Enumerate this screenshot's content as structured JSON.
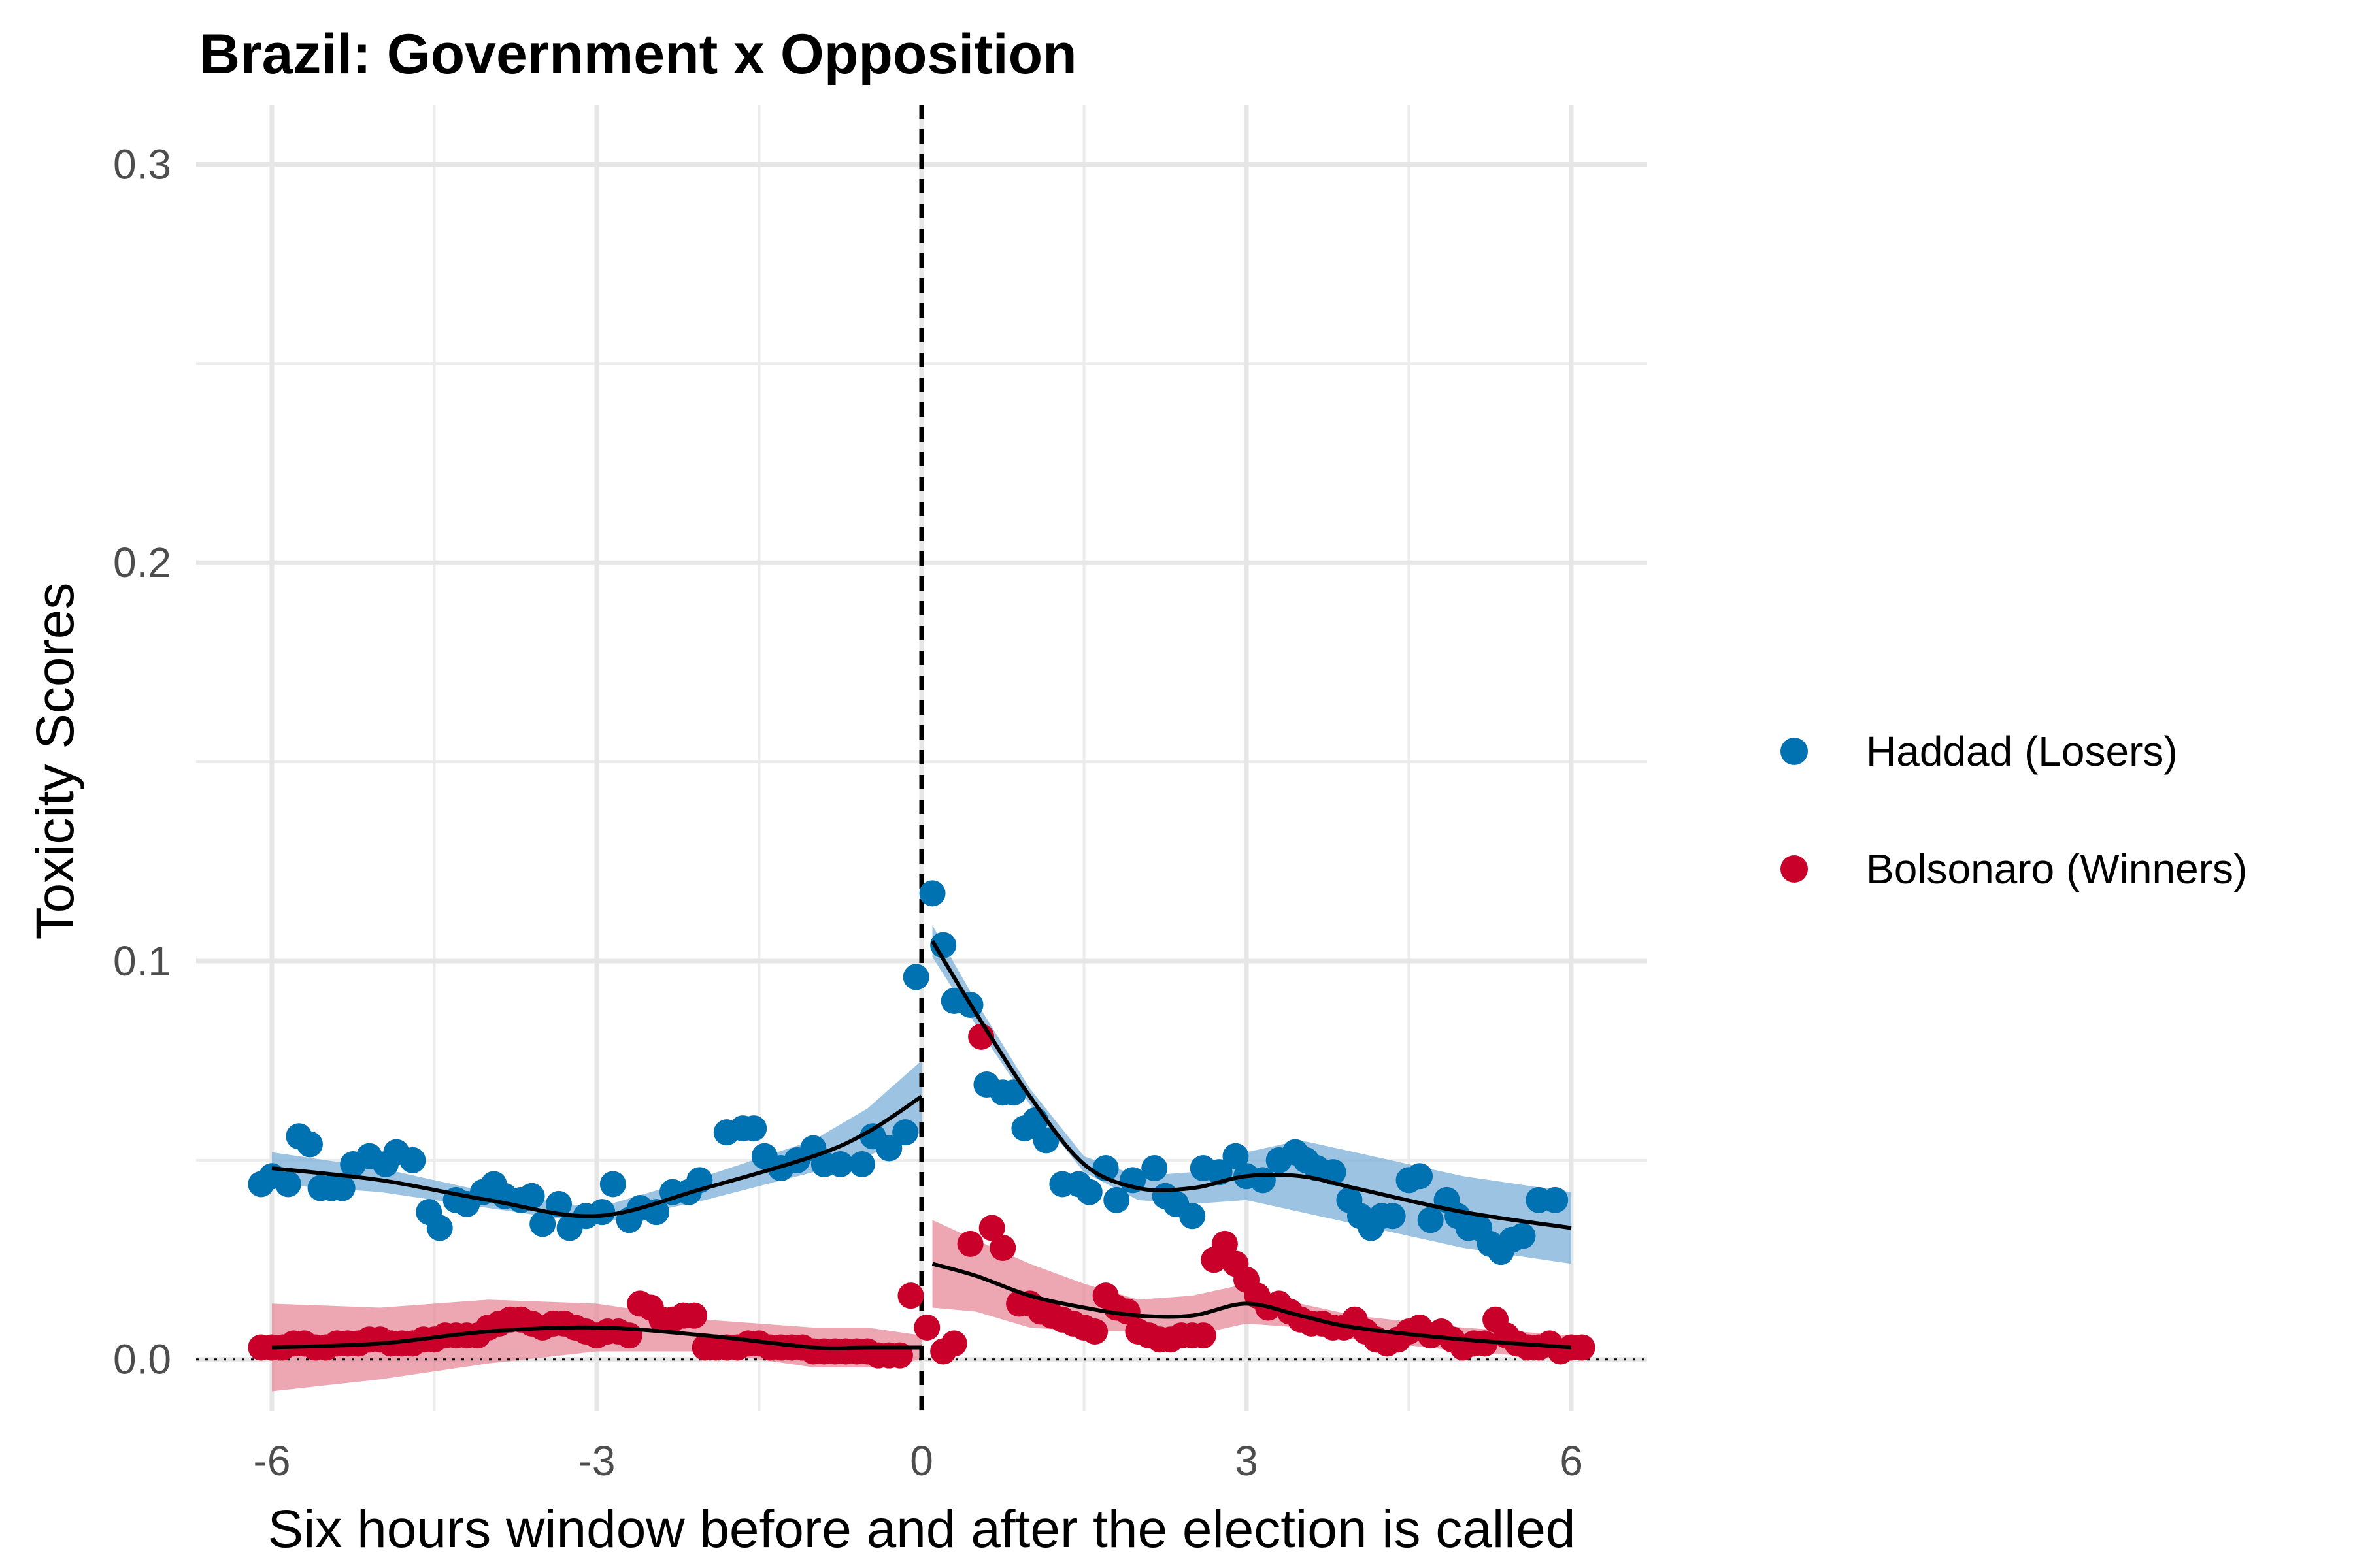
{
  "chart_data": {
    "type": "scatter",
    "title": "Brazil: Government x Opposition",
    "xlabel": "Six hours window before and after the election is called",
    "ylabel": "Toxicity Scores",
    "xlim": [
      -6.7,
      6.7
    ],
    "ylim": [
      -0.013,
      0.315
    ],
    "xticks": [
      -6,
      -3,
      0,
      3,
      6
    ],
    "xtick_labels": [
      "-6",
      "-3",
      "0",
      "3",
      "6"
    ],
    "yticks": [
      0.0,
      0.1,
      0.2,
      0.3
    ],
    "ytick_labels": [
      "0.0",
      "0.1",
      "0.2",
      "0.3"
    ],
    "grid": true,
    "legend_position": "right",
    "reference_lines": [
      {
        "axis": "x",
        "value": 0,
        "style": "dashed"
      },
      {
        "axis": "y",
        "value": 0,
        "style": "dotted"
      }
    ],
    "series": [
      {
        "name": "Haddad (Losers)",
        "color": "#0072b2",
        "band_color": "#7bafd8",
        "points": [
          [
            -6.1,
            0.044
          ],
          [
            -6.0,
            0.046
          ],
          [
            -5.85,
            0.044
          ],
          [
            -5.75,
            0.056
          ],
          [
            -5.65,
            0.054
          ],
          [
            -5.55,
            0.043
          ],
          [
            -5.45,
            0.043
          ],
          [
            -5.35,
            0.043
          ],
          [
            -5.25,
            0.049
          ],
          [
            -5.1,
            0.051
          ],
          [
            -4.95,
            0.049
          ],
          [
            -4.85,
            0.052
          ],
          [
            -4.7,
            0.05
          ],
          [
            -4.55,
            0.037
          ],
          [
            -4.45,
            0.033
          ],
          [
            -4.3,
            0.04
          ],
          [
            -4.2,
            0.039
          ],
          [
            -4.05,
            0.042
          ],
          [
            -3.95,
            0.044
          ],
          [
            -3.85,
            0.041
          ],
          [
            -3.7,
            0.04
          ],
          [
            -3.6,
            0.041
          ],
          [
            -3.5,
            0.034
          ],
          [
            -3.35,
            0.039
          ],
          [
            -3.25,
            0.033
          ],
          [
            -3.1,
            0.036
          ],
          [
            -2.95,
            0.037
          ],
          [
            -2.85,
            0.044
          ],
          [
            -2.7,
            0.035
          ],
          [
            -2.6,
            0.038
          ],
          [
            -2.45,
            0.037
          ],
          [
            -2.3,
            0.042
          ],
          [
            -2.15,
            0.042
          ],
          [
            -2.05,
            0.045
          ],
          [
            -1.8,
            0.057
          ],
          [
            -1.65,
            0.058
          ],
          [
            -1.55,
            0.058
          ],
          [
            -1.45,
            0.051
          ],
          [
            -1.3,
            0.048
          ],
          [
            -1.15,
            0.05
          ],
          [
            -1.0,
            0.053
          ],
          [
            -0.9,
            0.049
          ],
          [
            -0.75,
            0.049
          ],
          [
            -0.55,
            0.049
          ],
          [
            -0.45,
            0.056
          ],
          [
            -0.3,
            0.053
          ],
          [
            -0.15,
            0.057
          ],
          [
            -0.05,
            0.096
          ],
          [
            0.1,
            0.117
          ],
          [
            0.2,
            0.104
          ],
          [
            0.3,
            0.09
          ],
          [
            0.45,
            0.089
          ],
          [
            0.6,
            0.069
          ],
          [
            0.75,
            0.067
          ],
          [
            0.85,
            0.067
          ],
          [
            0.95,
            0.058
          ],
          [
            1.05,
            0.06
          ],
          [
            1.15,
            0.055
          ],
          [
            1.3,
            0.044
          ],
          [
            1.45,
            0.044
          ],
          [
            1.55,
            0.042
          ],
          [
            1.7,
            0.048
          ],
          [
            1.8,
            0.04
          ],
          [
            1.95,
            0.045
          ],
          [
            2.15,
            0.048
          ],
          [
            2.25,
            0.041
          ],
          [
            2.35,
            0.039
          ],
          [
            2.5,
            0.036
          ],
          [
            2.6,
            0.048
          ],
          [
            2.75,
            0.047
          ],
          [
            2.9,
            0.051
          ],
          [
            3.0,
            0.046
          ],
          [
            3.15,
            0.045
          ],
          [
            3.3,
            0.05
          ],
          [
            3.45,
            0.052
          ],
          [
            3.55,
            0.05
          ],
          [
            3.65,
            0.048
          ],
          [
            3.8,
            0.047
          ],
          [
            3.95,
            0.04
          ],
          [
            4.05,
            0.036
          ],
          [
            4.15,
            0.033
          ],
          [
            4.25,
            0.036
          ],
          [
            4.35,
            0.036
          ],
          [
            4.5,
            0.045
          ],
          [
            4.6,
            0.046
          ],
          [
            4.7,
            0.035
          ],
          [
            4.85,
            0.04
          ],
          [
            4.95,
            0.036
          ],
          [
            5.05,
            0.033
          ],
          [
            5.15,
            0.033
          ],
          [
            5.25,
            0.029
          ],
          [
            5.35,
            0.027
          ],
          [
            5.45,
            0.03
          ],
          [
            5.55,
            0.031
          ],
          [
            5.7,
            0.04
          ],
          [
            5.85,
            0.04
          ]
        ],
        "trend_before": [
          [
            -6.0,
            0.048
          ],
          [
            -5.0,
            0.045
          ],
          [
            -4.0,
            0.04
          ],
          [
            -3.0,
            0.036
          ],
          [
            -2.0,
            0.043
          ],
          [
            -1.0,
            0.051
          ],
          [
            -0.5,
            0.057
          ],
          [
            0.0,
            0.066
          ]
        ],
        "trend_after": [
          [
            0.1,
            0.105
          ],
          [
            0.5,
            0.087
          ],
          [
            1.0,
            0.066
          ],
          [
            1.5,
            0.049
          ],
          [
            2.0,
            0.043
          ],
          [
            2.5,
            0.043
          ],
          [
            3.0,
            0.046
          ],
          [
            3.5,
            0.046
          ],
          [
            4.0,
            0.043
          ],
          [
            5.0,
            0.037
          ],
          [
            6.0,
            0.033
          ]
        ],
        "band_half_width": [
          0.004,
          0.003,
          0.002,
          0.002,
          0.003,
          0.004,
          0.006,
          0.009
        ]
      },
      {
        "name": "Bolsonaro (Winners)",
        "color": "#c8002a",
        "band_color": "#e68a9a",
        "points": [
          [
            -6.1,
            0.003
          ],
          [
            -6.0,
            0.003
          ],
          [
            -5.9,
            0.003
          ],
          [
            -5.8,
            0.004
          ],
          [
            -5.7,
            0.004
          ],
          [
            -5.6,
            0.003
          ],
          [
            -5.5,
            0.003
          ],
          [
            -5.4,
            0.004
          ],
          [
            -5.3,
            0.004
          ],
          [
            -5.2,
            0.004
          ],
          [
            -5.1,
            0.005
          ],
          [
            -5.0,
            0.005
          ],
          [
            -4.9,
            0.004
          ],
          [
            -4.8,
            0.004
          ],
          [
            -4.7,
            0.004
          ],
          [
            -4.6,
            0.005
          ],
          [
            -4.5,
            0.005
          ],
          [
            -4.4,
            0.006
          ],
          [
            -4.3,
            0.006
          ],
          [
            -4.2,
            0.006
          ],
          [
            -4.1,
            0.006
          ],
          [
            -4.0,
            0.008
          ],
          [
            -3.9,
            0.009
          ],
          [
            -3.8,
            0.01
          ],
          [
            -3.7,
            0.01
          ],
          [
            -3.6,
            0.009
          ],
          [
            -3.5,
            0.008
          ],
          [
            -3.4,
            0.009
          ],
          [
            -3.3,
            0.009
          ],
          [
            -3.2,
            0.008
          ],
          [
            -3.1,
            0.007
          ],
          [
            -3.0,
            0.006
          ],
          [
            -2.9,
            0.007
          ],
          [
            -2.8,
            0.007
          ],
          [
            -2.7,
            0.006
          ],
          [
            -2.6,
            0.014
          ],
          [
            -2.5,
            0.013
          ],
          [
            -2.4,
            0.01
          ],
          [
            -2.3,
            0.01
          ],
          [
            -2.2,
            0.011
          ],
          [
            -2.1,
            0.011
          ],
          [
            -2.0,
            0.003
          ],
          [
            -1.9,
            0.003
          ],
          [
            -1.8,
            0.003
          ],
          [
            -1.7,
            0.003
          ],
          [
            -1.6,
            0.004
          ],
          [
            -1.5,
            0.004
          ],
          [
            -1.4,
            0.003
          ],
          [
            -1.3,
            0.003
          ],
          [
            -1.2,
            0.003
          ],
          [
            -1.1,
            0.003
          ],
          [
            -1.0,
            0.002
          ],
          [
            -0.9,
            0.002
          ],
          [
            -0.8,
            0.002
          ],
          [
            -0.7,
            0.002
          ],
          [
            -0.6,
            0.002
          ],
          [
            -0.5,
            0.002
          ],
          [
            -0.4,
            0.001
          ],
          [
            -0.3,
            0.001
          ],
          [
            -0.2,
            0.001
          ],
          [
            -0.1,
            0.016
          ],
          [
            0.05,
            0.008
          ],
          [
            0.2,
            0.002
          ],
          [
            0.3,
            0.004
          ],
          [
            0.45,
            0.029
          ],
          [
            0.55,
            0.081
          ],
          [
            0.65,
            0.033
          ],
          [
            0.75,
            0.028
          ],
          [
            0.9,
            0.014
          ],
          [
            1.0,
            0.014
          ],
          [
            1.1,
            0.012
          ],
          [
            1.2,
            0.011
          ],
          [
            1.3,
            0.01
          ],
          [
            1.4,
            0.009
          ],
          [
            1.5,
            0.008
          ],
          [
            1.6,
            0.007
          ],
          [
            1.7,
            0.016
          ],
          [
            1.8,
            0.013
          ],
          [
            1.9,
            0.012
          ],
          [
            2.0,
            0.007
          ],
          [
            2.1,
            0.006
          ],
          [
            2.2,
            0.005
          ],
          [
            2.3,
            0.005
          ],
          [
            2.4,
            0.006
          ],
          [
            2.5,
            0.006
          ],
          [
            2.6,
            0.006
          ],
          [
            2.7,
            0.025
          ],
          [
            2.8,
            0.029
          ],
          [
            2.9,
            0.024
          ],
          [
            3.0,
            0.02
          ],
          [
            3.1,
            0.016
          ],
          [
            3.2,
            0.013
          ],
          [
            3.3,
            0.014
          ],
          [
            3.4,
            0.012
          ],
          [
            3.5,
            0.01
          ],
          [
            3.6,
            0.009
          ],
          [
            3.7,
            0.009
          ],
          [
            3.8,
            0.008
          ],
          [
            3.9,
            0.008
          ],
          [
            4.0,
            0.01
          ],
          [
            4.1,
            0.007
          ],
          [
            4.2,
            0.005
          ],
          [
            4.3,
            0.004
          ],
          [
            4.4,
            0.005
          ],
          [
            4.5,
            0.007
          ],
          [
            4.6,
            0.008
          ],
          [
            4.7,
            0.006
          ],
          [
            4.8,
            0.007
          ],
          [
            4.9,
            0.005
          ],
          [
            5.0,
            0.003
          ],
          [
            5.1,
            0.004
          ],
          [
            5.2,
            0.004
          ],
          [
            5.3,
            0.01
          ],
          [
            5.4,
            0.006
          ],
          [
            5.5,
            0.004
          ],
          [
            5.6,
            0.003
          ],
          [
            5.7,
            0.003
          ],
          [
            5.8,
            0.004
          ],
          [
            5.9,
            0.002
          ],
          [
            6.0,
            0.003
          ],
          [
            6.1,
            0.003
          ]
        ],
        "trend_before": [
          [
            -6.0,
            0.003
          ],
          [
            -5.0,
            0.004
          ],
          [
            -4.0,
            0.007
          ],
          [
            -3.0,
            0.008
          ],
          [
            -2.0,
            0.006
          ],
          [
            -1.0,
            0.003
          ],
          [
            -0.5,
            0.003
          ],
          [
            0.0,
            0.003
          ]
        ],
        "trend_after": [
          [
            0.1,
            0.024
          ],
          [
            0.5,
            0.021
          ],
          [
            1.0,
            0.016
          ],
          [
            1.5,
            0.013
          ],
          [
            2.0,
            0.011
          ],
          [
            2.5,
            0.011
          ],
          [
            3.0,
            0.014
          ],
          [
            3.5,
            0.011
          ],
          [
            4.0,
            0.008
          ],
          [
            5.0,
            0.005
          ],
          [
            6.0,
            0.003
          ]
        ],
        "band_half_width": [
          0.011,
          0.009,
          0.008,
          0.006,
          0.004,
          0.005,
          0.005,
          0.003
        ]
      }
    ]
  }
}
